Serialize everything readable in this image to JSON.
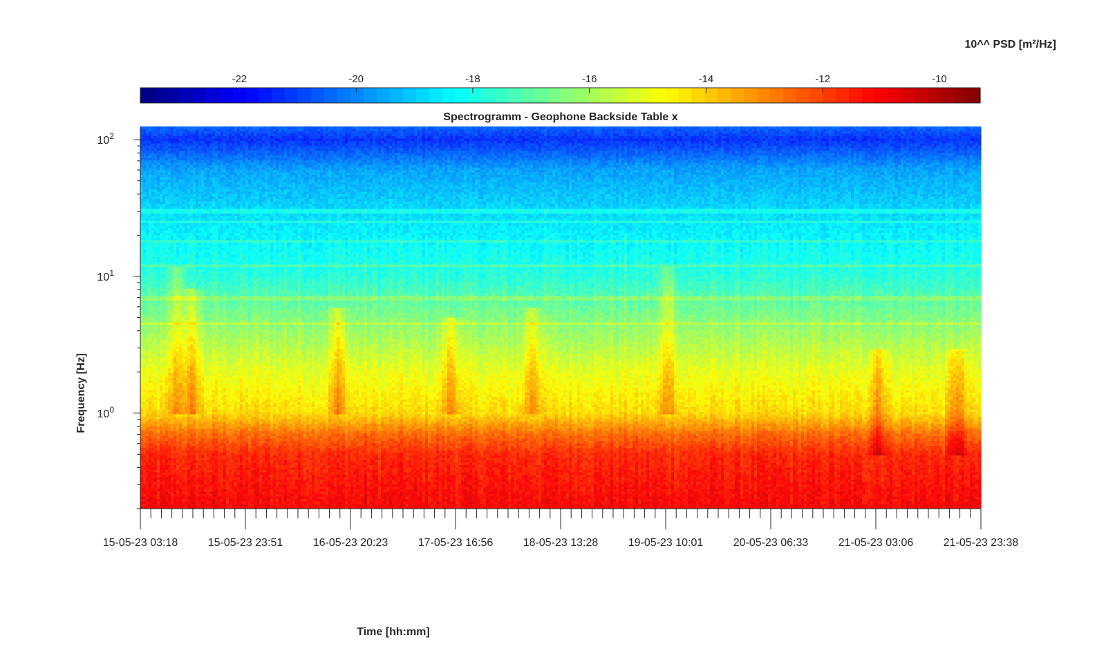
{
  "chart_data": {
    "type": "heatmap",
    "title": "Spectrogramm - Geophone Backside Table x",
    "xlabel": "Time [hh:mm]",
    "ylabel": "Frequency [Hz]",
    "colorbar_label": "10^^ PSD [m²/Hz]",
    "colormap": "jet",
    "y_scale": "log",
    "ylim": [
      0.2,
      125
    ],
    "x_tick_labels": [
      "15-05-23 03:18",
      "15-05-23 23:51",
      "16-05-23 20:23",
      "17-05-23 16:56",
      "18-05-23 13:28",
      "19-05-23 10:01",
      "20-05-23 06:33",
      "21-05-23 03:06",
      "21-05-23 23:38"
    ],
    "y_ticks": [
      {
        "base": "10",
        "exp": "0",
        "value": 1
      },
      {
        "base": "10",
        "exp": "1",
        "value": 10
      },
      {
        "base": "10",
        "exp": "2",
        "value": 100
      }
    ],
    "colorbar_ticks": [
      "-22",
      "-20",
      "-18",
      "-16",
      "-14",
      "-12",
      "-10"
    ],
    "colorbar_range": [
      -23.7,
      -9.3
    ],
    "log10_psd_profile": [
      {
        "freq_hz": 0.2,
        "log10_psd": -11.0
      },
      {
        "freq_hz": 0.5,
        "log10_psd": -11.6
      },
      {
        "freq_hz": 0.7,
        "log10_psd": -12.6
      },
      {
        "freq_hz": 1.0,
        "log10_psd": -14.2
      },
      {
        "freq_hz": 2.0,
        "log10_psd": -15.0
      },
      {
        "freq_hz": 5.0,
        "log10_psd": -16.5
      },
      {
        "freq_hz": 10.0,
        "log10_psd": -17.8
      },
      {
        "freq_hz": 30.0,
        "log10_psd": -18.8
      },
      {
        "freq_hz": 60.0,
        "log10_psd": -19.6
      },
      {
        "freq_hz": 100.0,
        "log10_psd": -21.3
      },
      {
        "freq_hz": 125.0,
        "log10_psd": -20.5
      }
    ],
    "spectral_lines_hz": [
      7.0,
      4.5,
      12.0,
      18.0,
      25.0,
      30.0
    ],
    "events": [
      {
        "time": "15-05-23 10:30",
        "freq_range_hz": [
          1.0,
          12.0
        ]
      },
      {
        "time": "15-05-23 13:30",
        "freq_range_hz": [
          1.0,
          8.0
        ]
      },
      {
        "time": "16-05-23 18:00",
        "freq_range_hz": [
          1.0,
          6.0
        ]
      },
      {
        "time": "17-05-23 16:00",
        "freq_range_hz": [
          1.0,
          5.0
        ]
      },
      {
        "time": "18-05-23 08:00",
        "freq_range_hz": [
          1.0,
          6.0
        ]
      },
      {
        "time": "19-05-23 10:30",
        "freq_range_hz": [
          1.0,
          12.0
        ]
      },
      {
        "time": "21-05-23 03:30",
        "freq_range_hz": [
          0.5,
          3.0
        ]
      },
      {
        "time": "21-05-23 19:00",
        "freq_range_hz": [
          0.5,
          3.0
        ]
      }
    ]
  }
}
